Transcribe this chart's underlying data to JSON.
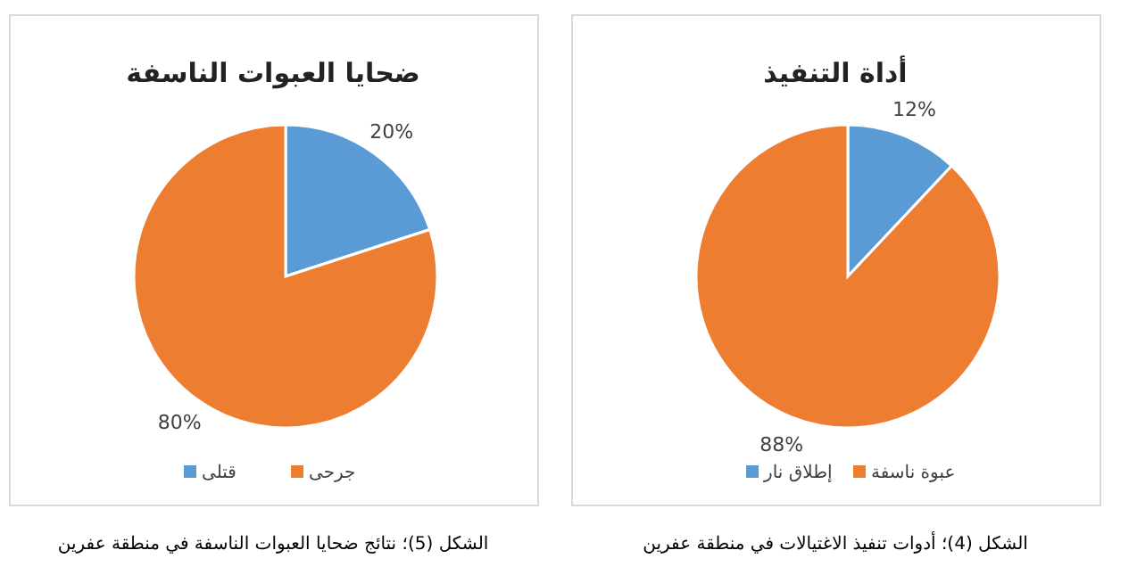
{
  "chart_data": [
    {
      "type": "pie",
      "title": "ضحايا العبوات الناسفة",
      "categories": [
        "قتلى",
        "جرحى"
      ],
      "values": [
        20,
        80
      ],
      "colors": [
        "#5b9bd5",
        "#ed7d31"
      ],
      "value_labels": [
        "20%",
        "80%"
      ],
      "legend": "bottom",
      "annotations": [
        "الشكل (5)؛ نتائج ضحايا العبوات الناسفة في منطقة عفرين"
      ]
    },
    {
      "type": "pie",
      "title": "أداة التنفيذ",
      "categories": [
        "إطلاق نار",
        "عبوة ناسفة"
      ],
      "values": [
        12,
        88
      ],
      "colors": [
        "#5b9bd5",
        "#ed7d31"
      ],
      "value_labels": [
        "12%",
        "88%"
      ],
      "legend": "bottom",
      "annotations": [
        "الشكل (4)؛ أدوات تنفيذ الاغتيالات في منطقة عفرين"
      ]
    }
  ]
}
